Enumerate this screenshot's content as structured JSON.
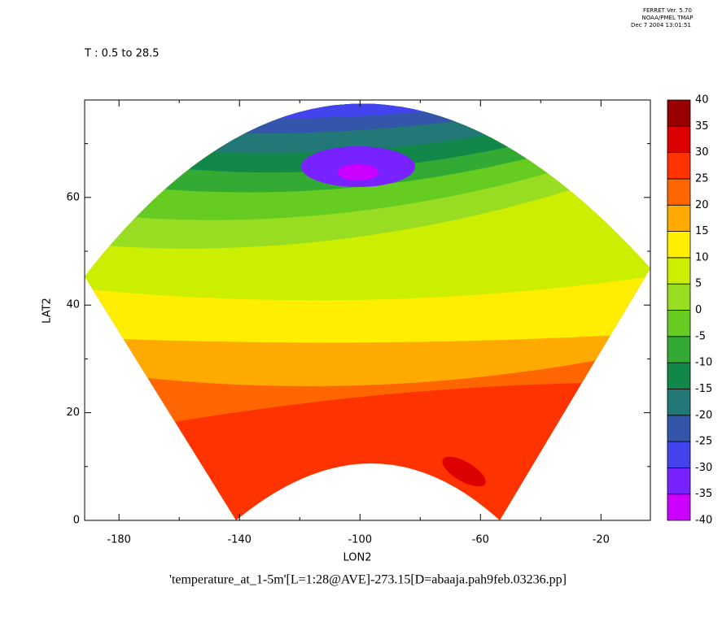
{
  "chart_data": {
    "type": "map",
    "header": [
      "FERRET Ver. 5.70",
      "NOAA/PMEL TMAP",
      "Dec  7 2004 13:01:51"
    ],
    "subtitle": "T : 0.5 to 28.5",
    "title": "'temperature_at_1-5m'[L=1:28@AVE]-273.15[D=abaaja.pah9feb.03236.pp]",
    "x_label": "LON2",
    "y_label": "LAT2",
    "xlim": [
      -191.4,
      -3.6
    ],
    "ylim": [
      0,
      78.1
    ],
    "xticks": [
      -180,
      -140,
      -100,
      -60,
      -20
    ],
    "x_minor_ticks": [
      -160,
      -120,
      -80,
      -40
    ],
    "yticks": [
      0,
      20,
      40,
      60
    ],
    "y_minor_ticks": [
      10,
      30,
      50,
      70
    ],
    "colorbar": {
      "levels": [
        -40,
        -35,
        -30,
        -25,
        -20,
        -15,
        -10,
        -5,
        0,
        5,
        10,
        15,
        20,
        25,
        30,
        35,
        40
      ],
      "colors": [
        "#cc00ff",
        "#7722ff",
        "#4444ee",
        "#3355aa",
        "#227777",
        "#11884a",
        "#33aa33",
        "#66cc22",
        "#99dd22",
        "#ccee00",
        "#ffee00",
        "#ffaa00",
        "#ff6600",
        "#ff3300",
        "#dd0000",
        "#990000"
      ]
    }
  }
}
